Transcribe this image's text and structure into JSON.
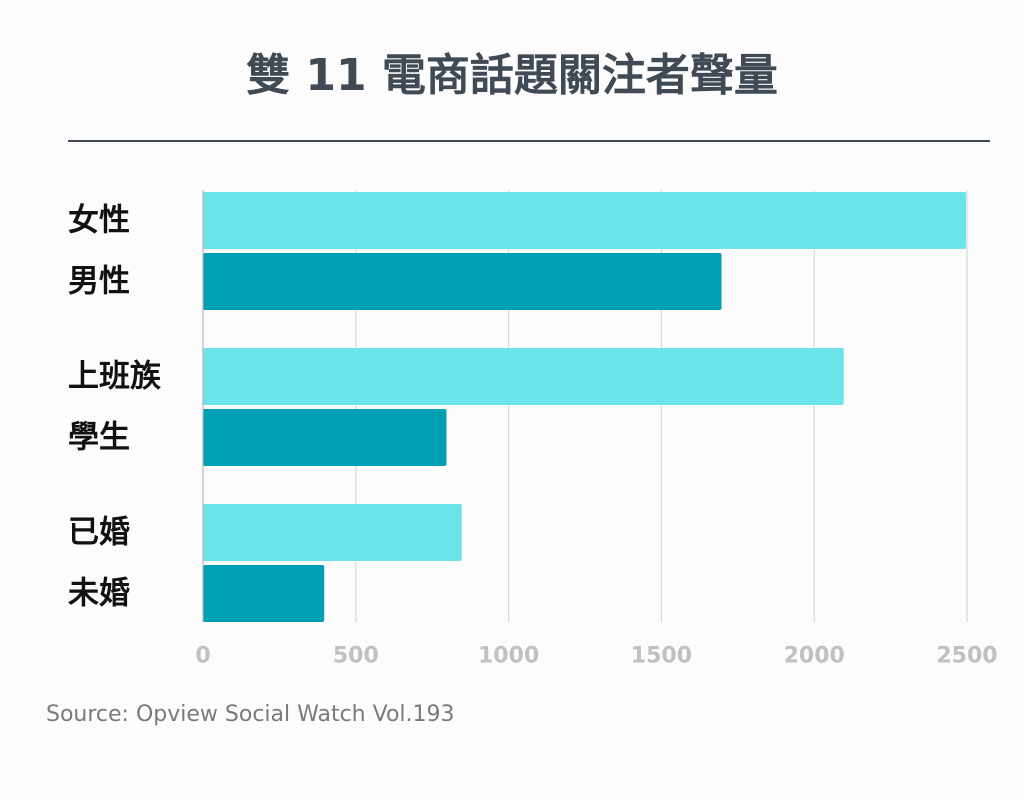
{
  "chart_data": {
    "type": "bar",
    "orientation": "horizontal",
    "title": "雙 11 電商話題關注者聲量",
    "categories": [
      "女性",
      "男性",
      "上班族",
      "學生",
      "已婚",
      "未婚"
    ],
    "values": [
      2500,
      1700,
      2100,
      800,
      850,
      400
    ],
    "bar_colors": [
      "#6ae4e8",
      "#00a0b4",
      "#6ae4e8",
      "#00a0b4",
      "#6ae4e8",
      "#00a0b4"
    ],
    "xlim": [
      0,
      2500
    ],
    "xticks": [
      0,
      500,
      1000,
      1500,
      2000,
      2500
    ],
    "xtick_labels": [
      "0",
      "500",
      "1000",
      "1500",
      "2000",
      "2500"
    ],
    "grid": true,
    "legend": "none",
    "source": "Source: Opview Social Watch Vol.193"
  },
  "colors": {
    "light_bar": "#6ae4e8",
    "dark_bar": "#00a0b4",
    "title": "#3f4a55",
    "gridline": "#d9d9d9",
    "tick_text": "#c0c0c0",
    "source_text": "#7a7a7a",
    "background": "#fdfcfd"
  }
}
